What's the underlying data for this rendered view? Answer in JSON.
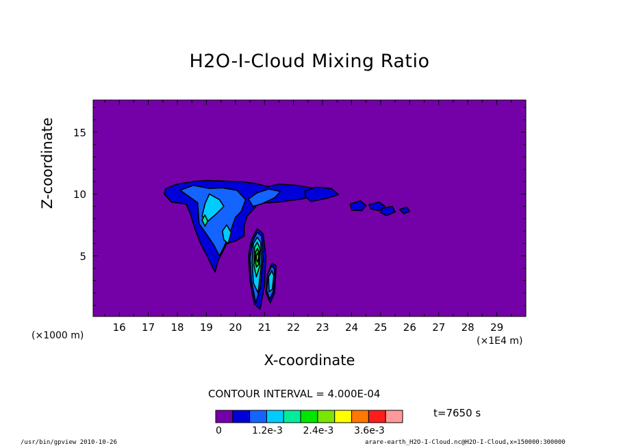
{
  "chart_data": {
    "type": "heatmap",
    "title": "H2O-I-Cloud Mixing Ratio",
    "xlabel": "X-coordinate",
    "ylabel": "Z-coordinate",
    "x_unit_note": "(×1E4 m)",
    "y_unit_note": "(×1000 m)",
    "xlim": [
      15.1,
      30.0
    ],
    "ylim": [
      0.1,
      17.6
    ],
    "x_ticks": [
      16,
      17,
      18,
      19,
      20,
      21,
      22,
      23,
      24,
      25,
      26,
      27,
      28,
      29
    ],
    "y_ticks": [
      5,
      10,
      15
    ],
    "contour_interval_label": "CONTOUR INTERVAL = 4.000E-04",
    "time_label": "t=7650 s",
    "colorbar": {
      "colors": [
        "#7400a8",
        "#0000d8",
        "#1464ff",
        "#00ccff",
        "#00ee9c",
        "#00e600",
        "#78e600",
        "#ffff00",
        "#ff7800",
        "#ff1c1c",
        "#ff9a9a"
      ],
      "tick_labels": [
        "0",
        "1.2e-3",
        "2.4e-3",
        "3.6e-3"
      ],
      "tick_values": [
        0,
        0.0012,
        0.0024,
        0.0036
      ]
    },
    "regions": [
      {
        "level": 1,
        "points": [
          [
            17.55,
            10.0
          ],
          [
            17.6,
            10.45
          ],
          [
            18.0,
            10.8
          ],
          [
            18.5,
            11.0
          ],
          [
            19.0,
            11.1
          ],
          [
            19.6,
            11.05
          ],
          [
            20.2,
            11.0
          ],
          [
            20.7,
            10.85
          ],
          [
            21.1,
            10.6
          ],
          [
            21.5,
            10.8
          ],
          [
            22.1,
            10.7
          ],
          [
            22.6,
            10.5
          ],
          [
            23.1,
            10.3
          ],
          [
            22.9,
            9.95
          ],
          [
            22.3,
            9.6
          ],
          [
            21.5,
            9.35
          ],
          [
            20.8,
            9.25
          ],
          [
            20.4,
            8.2
          ],
          [
            20.3,
            7.4
          ],
          [
            20.3,
            6.6
          ],
          [
            20.0,
            6.2
          ],
          [
            19.7,
            6.0
          ],
          [
            19.55,
            5.3
          ],
          [
            19.4,
            4.6
          ],
          [
            19.3,
            3.7
          ],
          [
            19.1,
            4.6
          ],
          [
            19.0,
            5.1
          ],
          [
            18.8,
            6.0
          ],
          [
            18.6,
            7.2
          ],
          [
            18.45,
            8.4
          ],
          [
            18.3,
            9.2
          ],
          [
            17.8,
            9.35
          ]
        ]
      },
      {
        "level": 1,
        "points": [
          [
            22.4,
            10.25
          ],
          [
            22.75,
            10.55
          ],
          [
            23.3,
            10.45
          ],
          [
            23.55,
            9.95
          ],
          [
            23.15,
            9.65
          ],
          [
            22.6,
            9.4
          ],
          [
            22.4,
            9.8
          ]
        ]
      },
      {
        "level": 1,
        "points": [
          [
            23.95,
            9.2
          ],
          [
            24.3,
            9.45
          ],
          [
            24.5,
            9.05
          ],
          [
            24.35,
            8.65
          ],
          [
            24.0,
            8.7
          ]
        ]
      },
      {
        "level": 1,
        "points": [
          [
            24.6,
            9.15
          ],
          [
            24.95,
            9.35
          ],
          [
            25.15,
            9.0
          ],
          [
            24.95,
            8.65
          ],
          [
            24.65,
            8.8
          ]
        ]
      },
      {
        "level": 1,
        "points": [
          [
            25.05,
            8.85
          ],
          [
            25.4,
            9.0
          ],
          [
            25.5,
            8.55
          ],
          [
            25.2,
            8.25
          ],
          [
            25.0,
            8.5
          ]
        ]
      },
      {
        "level": 1,
        "points": [
          [
            25.65,
            8.75
          ],
          [
            25.9,
            8.95
          ],
          [
            26.0,
            8.6
          ],
          [
            25.8,
            8.4
          ]
        ]
      },
      {
        "level": 1,
        "points": [
          [
            20.55,
            6.3
          ],
          [
            20.75,
            7.2
          ],
          [
            20.95,
            6.8
          ],
          [
            21.05,
            5.0
          ],
          [
            21.0,
            2.6
          ],
          [
            20.85,
            0.7
          ],
          [
            20.65,
            1.1
          ],
          [
            20.5,
            3.0
          ],
          [
            20.45,
            5.0
          ]
        ]
      },
      {
        "level": 1,
        "points": [
          [
            21.1,
            3.5
          ],
          [
            21.25,
            4.4
          ],
          [
            21.4,
            4.2
          ],
          [
            21.35,
            2.0
          ],
          [
            21.2,
            1.2
          ],
          [
            21.05,
            2.0
          ]
        ]
      },
      {
        "level": 2,
        "points": [
          [
            18.1,
            10.3
          ],
          [
            18.55,
            10.7
          ],
          [
            19.1,
            10.45
          ],
          [
            19.55,
            10.5
          ],
          [
            20.05,
            10.3
          ],
          [
            20.35,
            9.55
          ],
          [
            20.2,
            8.6
          ],
          [
            20.0,
            8.1
          ],
          [
            19.8,
            6.8
          ],
          [
            19.6,
            5.7
          ],
          [
            19.45,
            5.0
          ],
          [
            19.25,
            5.9
          ],
          [
            19.05,
            6.6
          ],
          [
            18.75,
            7.6
          ],
          [
            18.7,
            9.3
          ],
          [
            18.4,
            9.8
          ]
        ]
      },
      {
        "level": 2,
        "points": [
          [
            20.45,
            9.6
          ],
          [
            20.75,
            10.1
          ],
          [
            21.15,
            10.4
          ],
          [
            21.55,
            10.2
          ],
          [
            21.35,
            9.7
          ],
          [
            20.9,
            9.2
          ],
          [
            20.6,
            9.0
          ]
        ]
      },
      {
        "level": 2,
        "points": [
          [
            20.6,
            6.2
          ],
          [
            20.75,
            6.9
          ],
          [
            20.9,
            6.6
          ],
          [
            20.95,
            4.8
          ],
          [
            20.85,
            2.4
          ],
          [
            20.7,
            1.2
          ],
          [
            20.55,
            3.0
          ],
          [
            20.5,
            4.8
          ]
        ]
      },
      {
        "level": 2,
        "points": [
          [
            21.12,
            3.5
          ],
          [
            21.25,
            4.2
          ],
          [
            21.35,
            3.9
          ],
          [
            21.3,
            2.1
          ],
          [
            21.18,
            1.5
          ],
          [
            21.08,
            2.2
          ]
        ]
      },
      {
        "level": 3,
        "points": [
          [
            19.1,
            10.0
          ],
          [
            19.45,
            9.55
          ],
          [
            19.6,
            9.0
          ],
          [
            19.3,
            8.3
          ],
          [
            19.05,
            7.8
          ],
          [
            18.85,
            8.2
          ],
          [
            18.95,
            9.2
          ]
        ]
      },
      {
        "level": 3,
        "points": [
          [
            19.55,
            7.0
          ],
          [
            19.7,
            7.5
          ],
          [
            19.85,
            6.9
          ],
          [
            19.75,
            6.0
          ],
          [
            19.6,
            6.3
          ]
        ]
      },
      {
        "level": 3,
        "points": [
          [
            20.62,
            6.0
          ],
          [
            20.75,
            6.5
          ],
          [
            20.87,
            6.1
          ],
          [
            20.9,
            4.5
          ],
          [
            20.78,
            2.0
          ],
          [
            20.62,
            2.8
          ],
          [
            20.58,
            4.5
          ]
        ]
      },
      {
        "level": 3,
        "points": [
          [
            21.14,
            3.3
          ],
          [
            21.25,
            3.8
          ],
          [
            21.32,
            3.4
          ],
          [
            21.27,
            2.3
          ],
          [
            21.16,
            2.1
          ]
        ]
      },
      {
        "level": 4,
        "points": [
          [
            18.85,
            7.9
          ],
          [
            18.95,
            8.3
          ],
          [
            19.05,
            7.8
          ],
          [
            18.95,
            7.4
          ]
        ]
      },
      {
        "level": 4,
        "points": [
          [
            20.66,
            5.7
          ],
          [
            20.75,
            6.1
          ],
          [
            20.84,
            5.6
          ],
          [
            20.84,
            4.2
          ],
          [
            20.72,
            3.3
          ],
          [
            20.64,
            4.2
          ]
        ]
      },
      {
        "level": 5,
        "points": [
          [
            20.69,
            5.3
          ],
          [
            20.76,
            5.6
          ],
          [
            20.82,
            5.2
          ],
          [
            20.8,
            4.3
          ],
          [
            20.72,
            4.1
          ],
          [
            20.68,
            4.6
          ]
        ]
      },
      {
        "level": 6,
        "points": [
          [
            20.72,
            5.05
          ],
          [
            20.77,
            5.25
          ],
          [
            20.8,
            4.9
          ],
          [
            20.76,
            4.5
          ],
          [
            20.72,
            4.7
          ]
        ]
      }
    ]
  },
  "labels": {
    "x_unit": "(×1E4 m)",
    "y_unit": "(×1000 m)",
    "footer_left": "/usr/bin/gpview  2010-10-26",
    "footer_right": "arare-earth_H2O-I-Cloud.nc@H2O-I-Cloud,x=150000:300000"
  }
}
